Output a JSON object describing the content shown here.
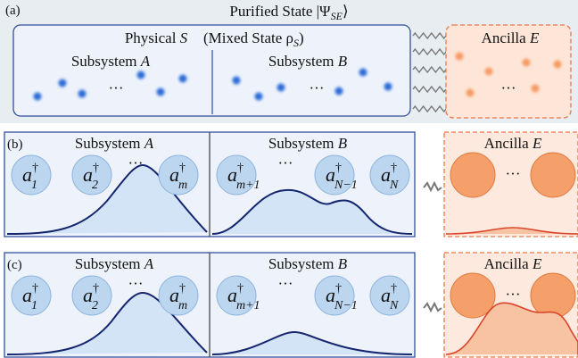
{
  "panel_a": {
    "label": "(a)",
    "title": {
      "text": "Purified State |Ψ",
      "sub": "SE",
      "close": "⟩"
    },
    "physical": {
      "text": "Physical ",
      "symbol": "S"
    },
    "mixed": {
      "text": "(Mixed State ρ",
      "sub": "S",
      "close": ")"
    },
    "subsystem_a": {
      "text": "Subsystem ",
      "symbol": "A"
    },
    "subsystem_b": {
      "text": "Subsystem ",
      "symbol": "B"
    },
    "ancilla": {
      "text": "Ancilla ",
      "symbol": "E"
    },
    "ellipses": [
      "···",
      "···",
      "···"
    ]
  },
  "panel_b": {
    "label": "(b)",
    "subsystem_a": {
      "text": "Subsystem ",
      "symbol": "A"
    },
    "subsystem_b": {
      "text": "Subsystem ",
      "symbol": "B"
    },
    "ancilla": {
      "text": "Ancilla ",
      "symbol": "E"
    },
    "operators": [
      {
        "base": "a",
        "sup": "†",
        "sub": "1"
      },
      {
        "base": "a",
        "sup": "†",
        "sub": "2"
      },
      {
        "base": "a",
        "sup": "†",
        "sub": "m"
      },
      {
        "base": "a",
        "sup": "†",
        "sub": "m+1"
      },
      {
        "base": "a",
        "sup": "†",
        "sub": "N−1"
      },
      {
        "base": "a",
        "sup": "†",
        "sub": "N"
      }
    ],
    "ellipses": [
      "···",
      "···",
      "···"
    ]
  },
  "panel_c": {
    "label": "(c)",
    "subsystem_a": {
      "text": "Subsystem ",
      "symbol": "A"
    },
    "subsystem_b": {
      "text": "Subsystem ",
      "symbol": "B"
    },
    "ancilla": {
      "text": "Ancilla ",
      "symbol": "E"
    },
    "operators": [
      {
        "base": "a",
        "sup": "†",
        "sub": "1"
      },
      {
        "base": "a",
        "sup": "†",
        "sub": "2"
      },
      {
        "base": "a",
        "sup": "†",
        "sub": "m"
      },
      {
        "base": "a",
        "sup": "†",
        "sub": "m+1"
      },
      {
        "base": "a",
        "sup": "†",
        "sub": "N−1"
      },
      {
        "base": "a",
        "sup": "†",
        "sub": "N"
      }
    ],
    "ellipses": [
      "···",
      "···",
      "···"
    ]
  }
}
